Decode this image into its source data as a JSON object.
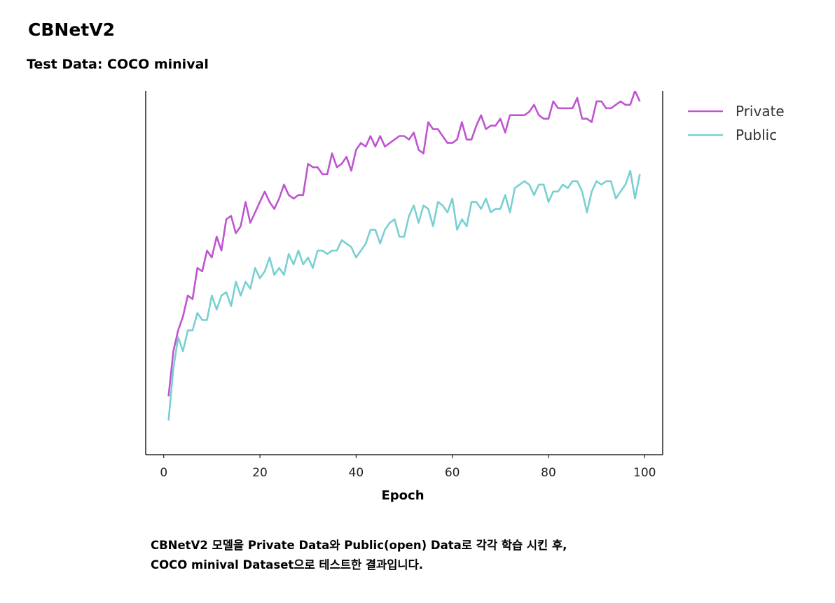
{
  "page": {
    "title": "CBNetV2",
    "subtitle": "Test Data: COCO minival",
    "caption_lines": [
      "CBNetV2 모델을 Private Data와 Public(open) Data로 각각 학습 시킨 후,",
      "COCO minival Dataset으로 테스트한 결과입니다."
    ]
  },
  "chart_data": {
    "type": "line",
    "title": "",
    "xlabel": "Epoch",
    "ylabel": "",
    "xlim": [
      -3.75,
      103.75
    ],
    "ylim": [
      0.0,
      1.0
    ],
    "xticks": [
      0,
      20,
      40,
      60,
      80,
      100
    ],
    "yticks_visible": false,
    "grid": false,
    "legend": "outside-top-right",
    "x": [
      1,
      2,
      3,
      4,
      5,
      6,
      7,
      8,
      9,
      10,
      11,
      12,
      13,
      14,
      15,
      16,
      17,
      18,
      19,
      20,
      21,
      22,
      23,
      24,
      25,
      26,
      27,
      28,
      29,
      30,
      31,
      32,
      33,
      34,
      35,
      36,
      37,
      38,
      39,
      40,
      41,
      42,
      43,
      44,
      45,
      46,
      47,
      48,
      49,
      50,
      51,
      52,
      53,
      54,
      55,
      56,
      57,
      58,
      59,
      60,
      61,
      62,
      63,
      64,
      65,
      66,
      67,
      68,
      69,
      70,
      71,
      72,
      73,
      74,
      75,
      76,
      77,
      78,
      79,
      80,
      81,
      82,
      83,
      84,
      85,
      86,
      87,
      88,
      89,
      90,
      91,
      92,
      93,
      94,
      95,
      96,
      97,
      98,
      99
    ],
    "series": [
      {
        "name": "Private",
        "color": "#bf55d0",
        "values": [
          0.12,
          0.25,
          0.31,
          0.35,
          0.41,
          0.4,
          0.49,
          0.48,
          0.54,
          0.52,
          0.58,
          0.54,
          0.63,
          0.64,
          0.59,
          0.61,
          0.68,
          0.62,
          0.65,
          0.68,
          0.71,
          0.68,
          0.66,
          0.69,
          0.73,
          0.7,
          0.69,
          0.7,
          0.7,
          0.79,
          0.78,
          0.78,
          0.76,
          0.76,
          0.82,
          0.78,
          0.79,
          0.81,
          0.77,
          0.83,
          0.85,
          0.84,
          0.87,
          0.84,
          0.87,
          0.84,
          0.85,
          0.86,
          0.87,
          0.87,
          0.86,
          0.88,
          0.83,
          0.82,
          0.91,
          0.89,
          0.89,
          0.87,
          0.85,
          0.85,
          0.86,
          0.91,
          0.86,
          0.86,
          0.9,
          0.93,
          0.89,
          0.9,
          0.9,
          0.92,
          0.88,
          0.93,
          0.93,
          0.93,
          0.93,
          0.94,
          0.96,
          0.93,
          0.92,
          0.92,
          0.97,
          0.95,
          0.95,
          0.95,
          0.95,
          0.98,
          0.92,
          0.92,
          0.91,
          0.97,
          0.97,
          0.95,
          0.95,
          0.96,
          0.97,
          0.96,
          0.96,
          1.0,
          0.97
        ]
      },
      {
        "name": "Public",
        "color": "#79d0d2",
        "values": [
          0.05,
          0.2,
          0.29,
          0.25,
          0.31,
          0.31,
          0.36,
          0.34,
          0.34,
          0.41,
          0.37,
          0.41,
          0.42,
          0.38,
          0.45,
          0.41,
          0.45,
          0.43,
          0.49,
          0.46,
          0.48,
          0.52,
          0.47,
          0.49,
          0.47,
          0.53,
          0.5,
          0.54,
          0.5,
          0.52,
          0.49,
          0.54,
          0.54,
          0.53,
          0.54,
          0.54,
          0.57,
          0.56,
          0.55,
          0.52,
          0.54,
          0.56,
          0.6,
          0.6,
          0.56,
          0.6,
          0.62,
          0.63,
          0.58,
          0.58,
          0.64,
          0.67,
          0.62,
          0.67,
          0.66,
          0.61,
          0.68,
          0.67,
          0.65,
          0.69,
          0.6,
          0.63,
          0.61,
          0.68,
          0.68,
          0.66,
          0.69,
          0.65,
          0.66,
          0.66,
          0.7,
          0.65,
          0.72,
          0.73,
          0.74,
          0.73,
          0.7,
          0.73,
          0.73,
          0.68,
          0.71,
          0.71,
          0.73,
          0.72,
          0.74,
          0.74,
          0.71,
          0.65,
          0.71,
          0.74,
          0.73,
          0.74,
          0.74,
          0.69,
          0.71,
          0.73,
          0.77,
          0.69,
          0.76
        ]
      }
    ]
  }
}
